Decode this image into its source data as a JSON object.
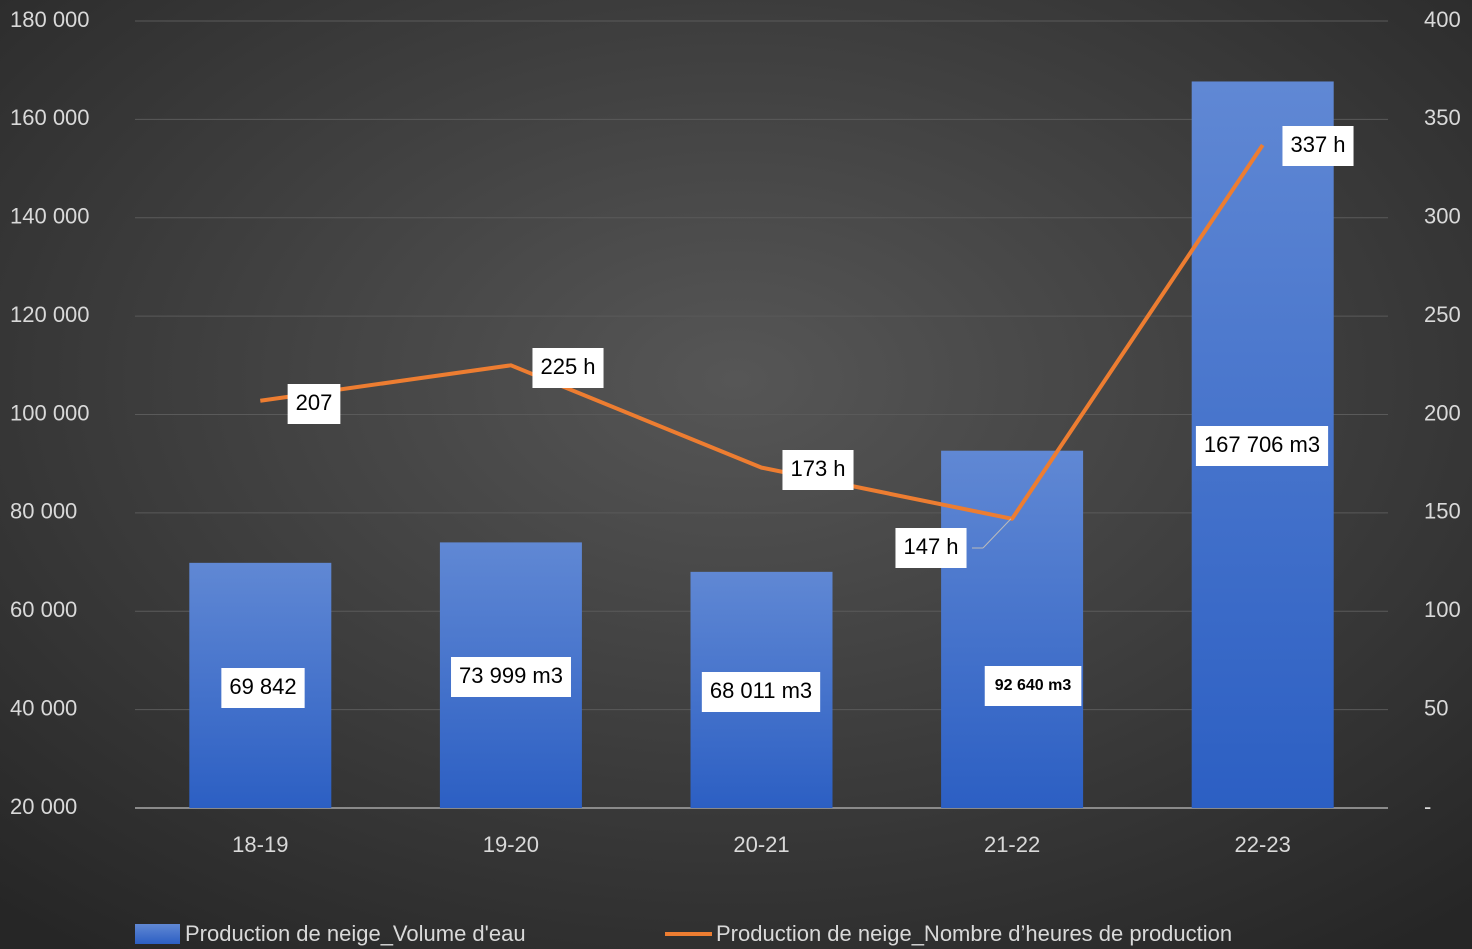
{
  "chart_data": {
    "type": "bar",
    "categories": [
      "18-19",
      "19-20",
      "20-21",
      "21-22",
      "22-23"
    ],
    "series": [
      {
        "name": "Production de neige_Volume d'eau",
        "type": "bar",
        "color": "#3a68c8",
        "values": [
          69842,
          73999,
          68011,
          92640,
          167706
        ],
        "value_labels": [
          "69 842",
          "73 999 m3",
          "68 011 m3",
          "92 640 m3",
          "167 706 m3"
        ]
      },
      {
        "name": "Production de neige_Nombre d’heures de production",
        "type": "line",
        "axis": "y2",
        "color": "#ed7d31",
        "values": [
          207,
          225,
          173,
          147,
          337
        ],
        "value_labels": [
          "207",
          "225 h",
          "173 h",
          "147 h",
          "337 h"
        ]
      }
    ],
    "ylim": [
      20000,
      180000
    ],
    "yticks": [
      {
        "value": 20000,
        "label": "20 000"
      },
      {
        "value": 40000,
        "label": "40 000"
      },
      {
        "value": 60000,
        "label": "60 000"
      },
      {
        "value": 80000,
        "label": "80 000"
      },
      {
        "value": 100000,
        "label": "100 000"
      },
      {
        "value": 120000,
        "label": "120 000"
      },
      {
        "value": 140000,
        "label": "140 000"
      },
      {
        "value": 160000,
        "label": "160 000"
      },
      {
        "value": 180000,
        "label": "180 000"
      }
    ],
    "y2lim": [
      0,
      400
    ],
    "y2ticks": [
      {
        "value": 0,
        "label": "-"
      },
      50,
      100,
      150,
      200,
      250,
      300,
      350,
      400
    ],
    "grid": true,
    "legend": "bottom"
  }
}
